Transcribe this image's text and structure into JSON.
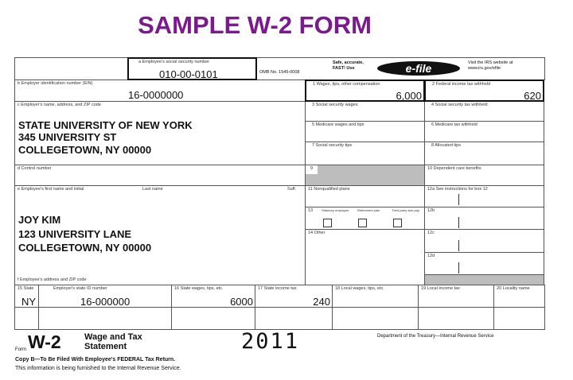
{
  "title": "SAMPLE W-2 FORM",
  "colors": {
    "title": "#7a1a8c",
    "shaded": "#bdbdbd"
  },
  "header": {
    "ssn_label": "a  Employee's social security number",
    "ssn_value": "010-00-0101",
    "omb": "OMB No. 1545-0008",
    "safe": "Safe, accurate,",
    "fast": "FAST! Use",
    "efile_logo": "e-file",
    "visit1": "Visit the IRS website at",
    "visit2": "www.irs.gov/efile"
  },
  "employer": {
    "ein_label": "b  Employer identification number (EIN)",
    "ein_value": "16-0000000",
    "name_label": "c  Employer's name, address, and ZIP code",
    "lines": [
      "STATE UNIVERSITY OF NEW YORK",
      "345 UNIVERSITY ST",
      "COLLEGETOWN, NY 00000"
    ],
    "control_label": "d  Control number"
  },
  "employee": {
    "name_label": "e  Employee's first name and initial",
    "last_label": "Last name",
    "suff_label": "Suff.",
    "lines": [
      "JOY KIM",
      "123 UNIVERSITY LANE",
      "COLLEGETOWN, NY 00000"
    ],
    "address_label": "f  Employee's address and ZIP code"
  },
  "boxes": {
    "b1_label": "1  Wages, tips, other compensation",
    "b1_value": "6,000",
    "b2_label": "2  Federal income tax withheld",
    "b2_value": "620",
    "b3_label": "3  Social security wages",
    "b4_label": "4  Social security tax withheld",
    "b5_label": "5  Medicare wages and tips",
    "b6_label": "6  Medicare tax withheld",
    "b7_label": "7  Social security tips",
    "b8_label": "8  Allocated tips",
    "b9_label": "9",
    "b10_label": "10  Dependent care benefits",
    "b11_label": "11  Nonqualified plans",
    "b12a_label": "12a  See instructions for box 12",
    "b12b_label": "12b",
    "b12c_label": "12c",
    "b12d_label": "12d",
    "b13_label": "13",
    "b13_statutory": "Statutory employee",
    "b13_retirement": "Retirement plan",
    "b13_sickpay": "Third-party sick pay",
    "b14_label": "14  Other"
  },
  "state_row": {
    "b15_label": "15  State",
    "state_id_label": "Employer's state ID number",
    "b16_label": "16  State wages, tips, etc.",
    "b17_label": "17  State income tax",
    "b18_label": "18  Local wages, tips, etc.",
    "b19_label": "19  Local income tax",
    "b20_label": "20  Locality name",
    "state": "NY",
    "state_id": "16-000000",
    "state_wages": "6000",
    "state_tax": "240"
  },
  "footer": {
    "form_word": "Form",
    "form_name": "W-2",
    "form_title1": "Wage and Tax",
    "form_title2": "Statement",
    "year": "2011",
    "department": "Department of the Treasury—Internal Revenue Service",
    "copy": "Copy B—To Be Filed With Employee's FEDERAL Tax Return.",
    "info": "This information is being furnished to the Internal Revenue Service."
  }
}
